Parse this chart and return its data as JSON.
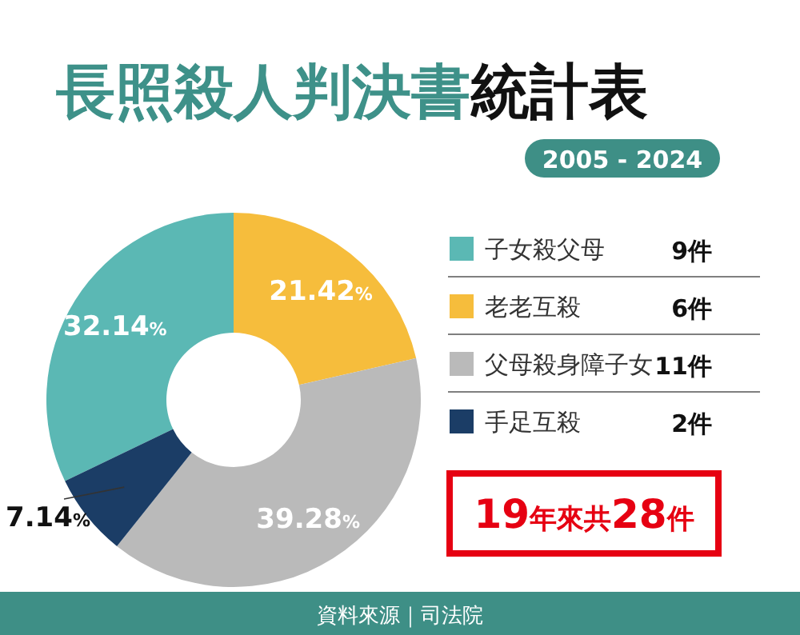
{
  "chart_data": {
    "type": "donut",
    "title": "長照殺人判決書統計表",
    "subtitle": "2005 - 2024",
    "categories": [
      "子女殺父母",
      "老老互殺",
      "父母殺身障子女",
      "手足互殺"
    ],
    "values": [
      32.14,
      21.42,
      39.28,
      7.14
    ],
    "colors": [
      "#5bb8b4",
      "#f6bd3c",
      "#bababa",
      "#1b3d66"
    ],
    "value_labels": [
      "32.14%",
      "21.42%",
      "39.28%",
      "7.14%"
    ],
    "legend": "right",
    "annotations": [
      "9件",
      "6件",
      "11件",
      "2件",
      "19年來共28件",
      "資料來源｜司法院"
    ]
  }
}
